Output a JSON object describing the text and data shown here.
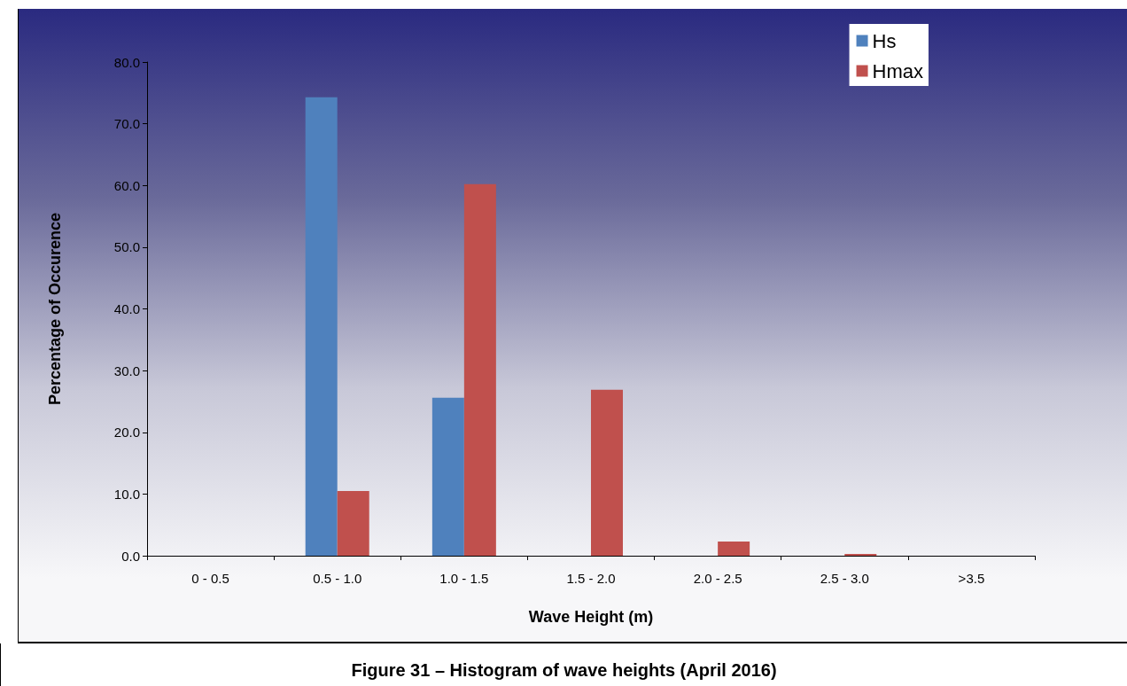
{
  "chart_data": {
    "type": "bar",
    "xlabel": "Wave Height (m)",
    "ylabel": "Percentage of Occurence",
    "categories": [
      "0 - 0.5",
      "0.5 - 1.0",
      "1.0 - 1.5",
      "1.5 - 2.0",
      "2.0 - 2.5",
      "2.5 - 3.0",
      ">3.5"
    ],
    "series": [
      {
        "name": "Hs",
        "color": "#4f81bd",
        "values": [
          0,
          74.3,
          25.6,
          0,
          0,
          0,
          0
        ]
      },
      {
        "name": "Hmax",
        "color": "#c0504d",
        "values": [
          0,
          10.5,
          60.2,
          26.9,
          2.3,
          0.3,
          0
        ]
      }
    ],
    "ylim": [
      0,
      80
    ],
    "yticks": [
      {
        "value": 0,
        "label": "0.0"
      },
      {
        "value": 10,
        "label": "10.0"
      },
      {
        "value": 20,
        "label": "20.0"
      },
      {
        "value": 30,
        "label": "30.0"
      },
      {
        "value": 40,
        "label": "40.0"
      },
      {
        "value": 50,
        "label": "50.0"
      },
      {
        "value": 60,
        "label": "60.0"
      },
      {
        "value": 70,
        "label": "70.0"
      },
      {
        "value": 80,
        "label": "80.0"
      }
    ],
    "grid": false,
    "legend": "top right",
    "annotations": [
      "Figure 31 – Histogram of wave heights (April 2016)"
    ]
  }
}
